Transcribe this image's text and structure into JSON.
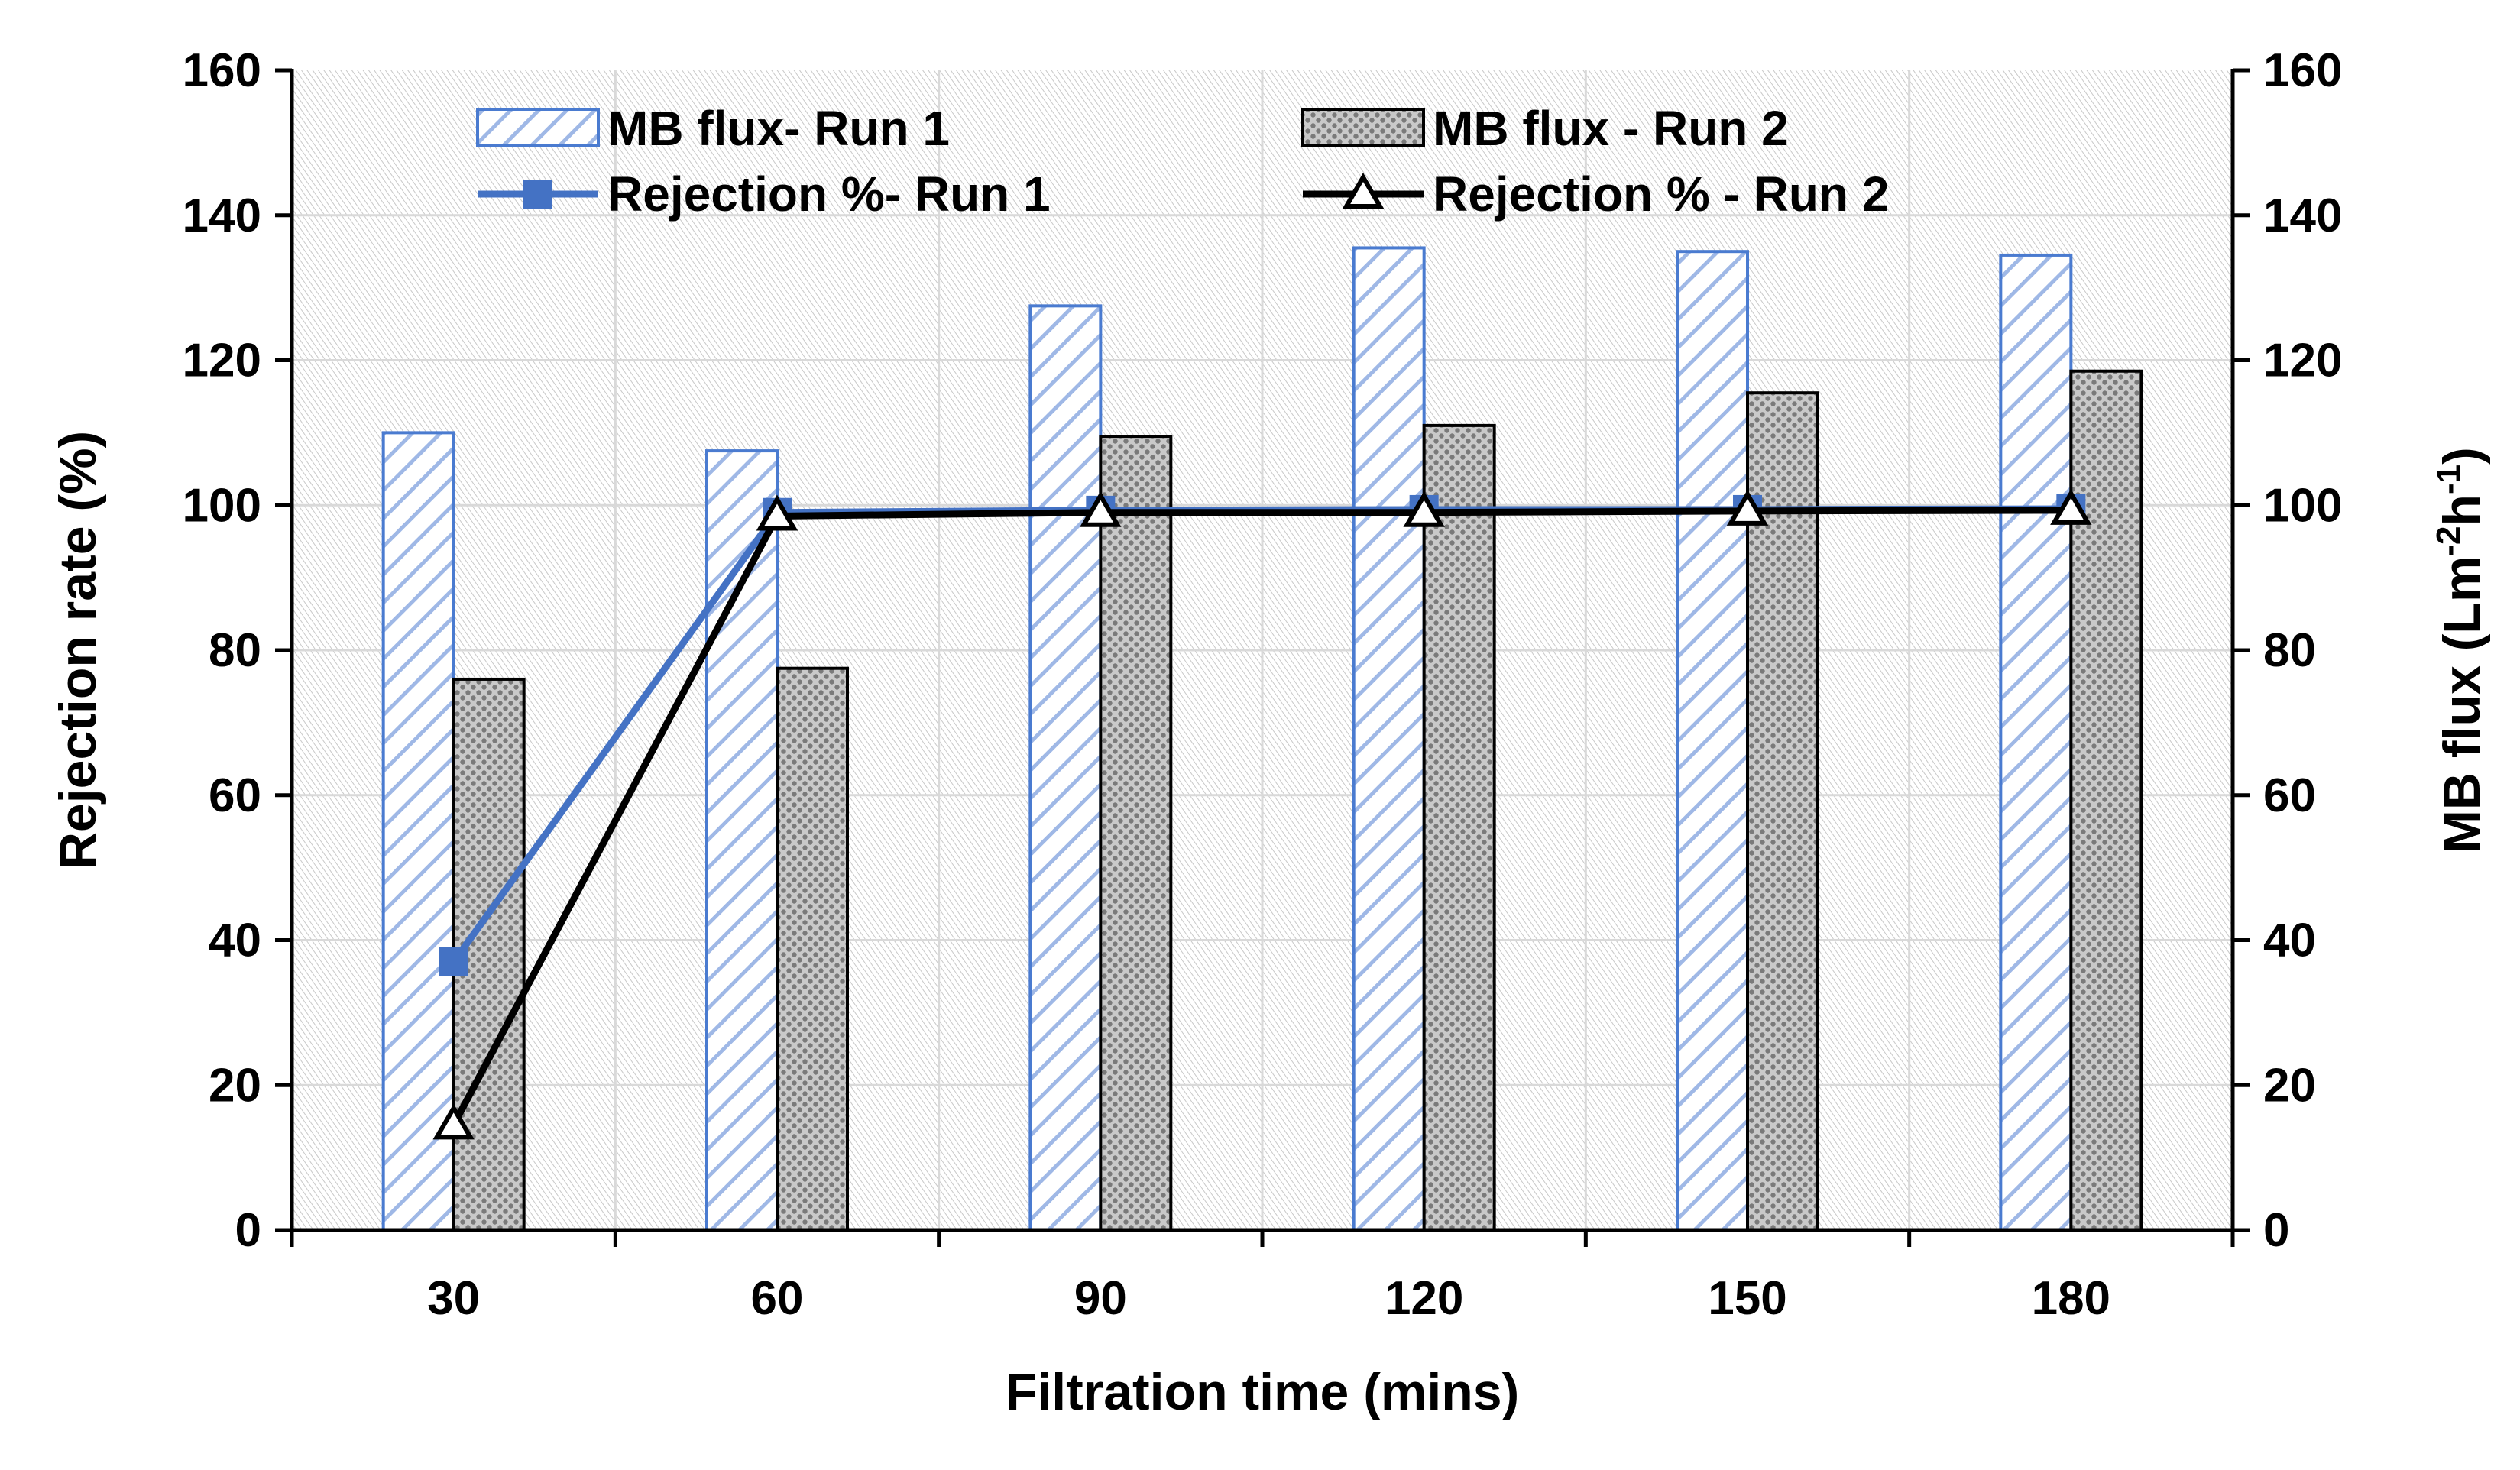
{
  "chart_data": {
    "type": "bar",
    "categories": [
      "30",
      "60",
      "90",
      "120",
      "150",
      "180"
    ],
    "xlabel": "Filtration time (mins)",
    "ylabel": "Rejection rate (%)",
    "y2label_main": "MB flux (Lm",
    "y2label_sup1": "-2",
    "y2label_mid": "h",
    "y2label_sup2": "-1",
    "y2label_end": ")",
    "ylim": [
      0,
      160
    ],
    "y2lim": [
      0,
      160
    ],
    "yticks": [
      "0",
      "20",
      "40",
      "60",
      "80",
      "100",
      "120",
      "140",
      "160"
    ],
    "y2ticks": [
      "0",
      "20",
      "40",
      "60",
      "80",
      "100",
      "120",
      "140",
      "160"
    ],
    "grid": true,
    "legend_position": "top",
    "bar_series": [
      {
        "name": "MB flux- Run 1",
        "axis": "right",
        "pattern": "diagonal-hatch",
        "color": "#4a7bd0",
        "values": [
          110,
          107.5,
          127.5,
          135.5,
          135,
          134.5
        ]
      },
      {
        "name": "MB flux - Run 2",
        "axis": "right",
        "pattern": "dotted",
        "color": "#000000",
        "values": [
          76,
          77.5,
          109.5,
          111,
          115.5,
          118.5
        ]
      }
    ],
    "line_series": [
      {
        "name": "Rejection %- Run 1",
        "axis": "left",
        "marker": "square",
        "color": "#4472c4",
        "values": [
          37,
          99,
          99.3,
          99.4,
          99.4,
          99.5
        ]
      },
      {
        "name": "Rejection % - Run 2",
        "axis": "left",
        "marker": "triangle",
        "color": "#000000",
        "values": [
          14.5,
          98.5,
          99,
          99,
          99.2,
          99.3
        ]
      }
    ]
  }
}
